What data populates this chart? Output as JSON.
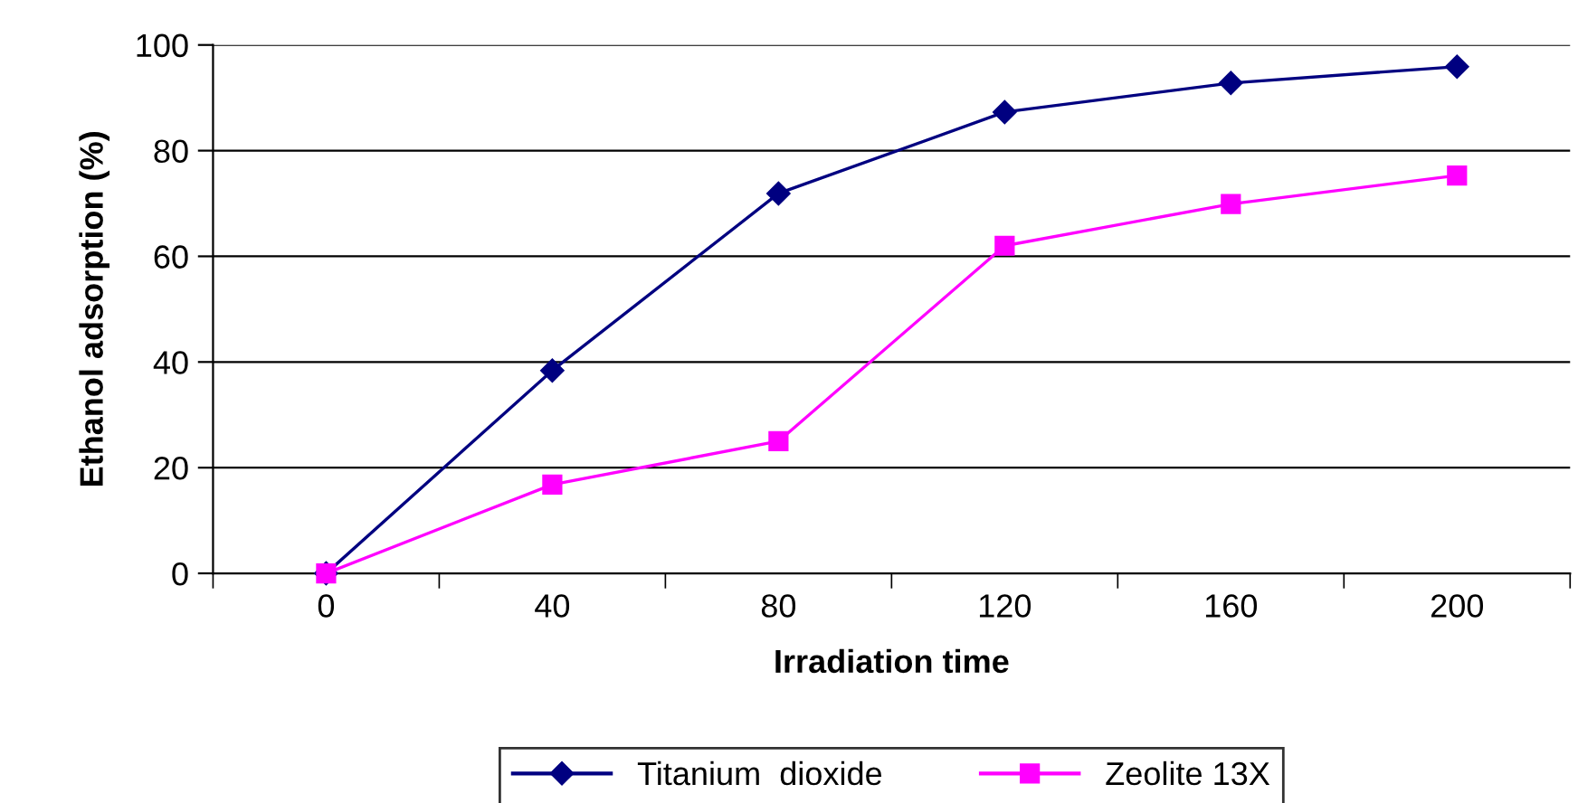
{
  "chart_data": {
    "type": "line",
    "xlabel": "Irradiation time",
    "ylabel": "Ethanol adsorption (%)",
    "categories": [
      "0",
      "40",
      "80",
      "120",
      "160",
      "200"
    ],
    "series": [
      {
        "name": "Titanium  dioxide",
        "color": "#000080",
        "marker": "diamond",
        "values": [
          0,
          38.4,
          71.9,
          87.3,
          92.8,
          95.9
        ]
      },
      {
        "name": "Zeolite 13X",
        "color": "#ff00ff",
        "marker": "square",
        "values": [
          0,
          16.8,
          25,
          62,
          69.9,
          75.3
        ]
      }
    ],
    "ylim": [
      0,
      100
    ],
    "yticks": [
      0,
      20,
      40,
      60,
      80,
      100
    ],
    "grid": "y",
    "legend": "bottom",
    "line_style": "solid"
  }
}
